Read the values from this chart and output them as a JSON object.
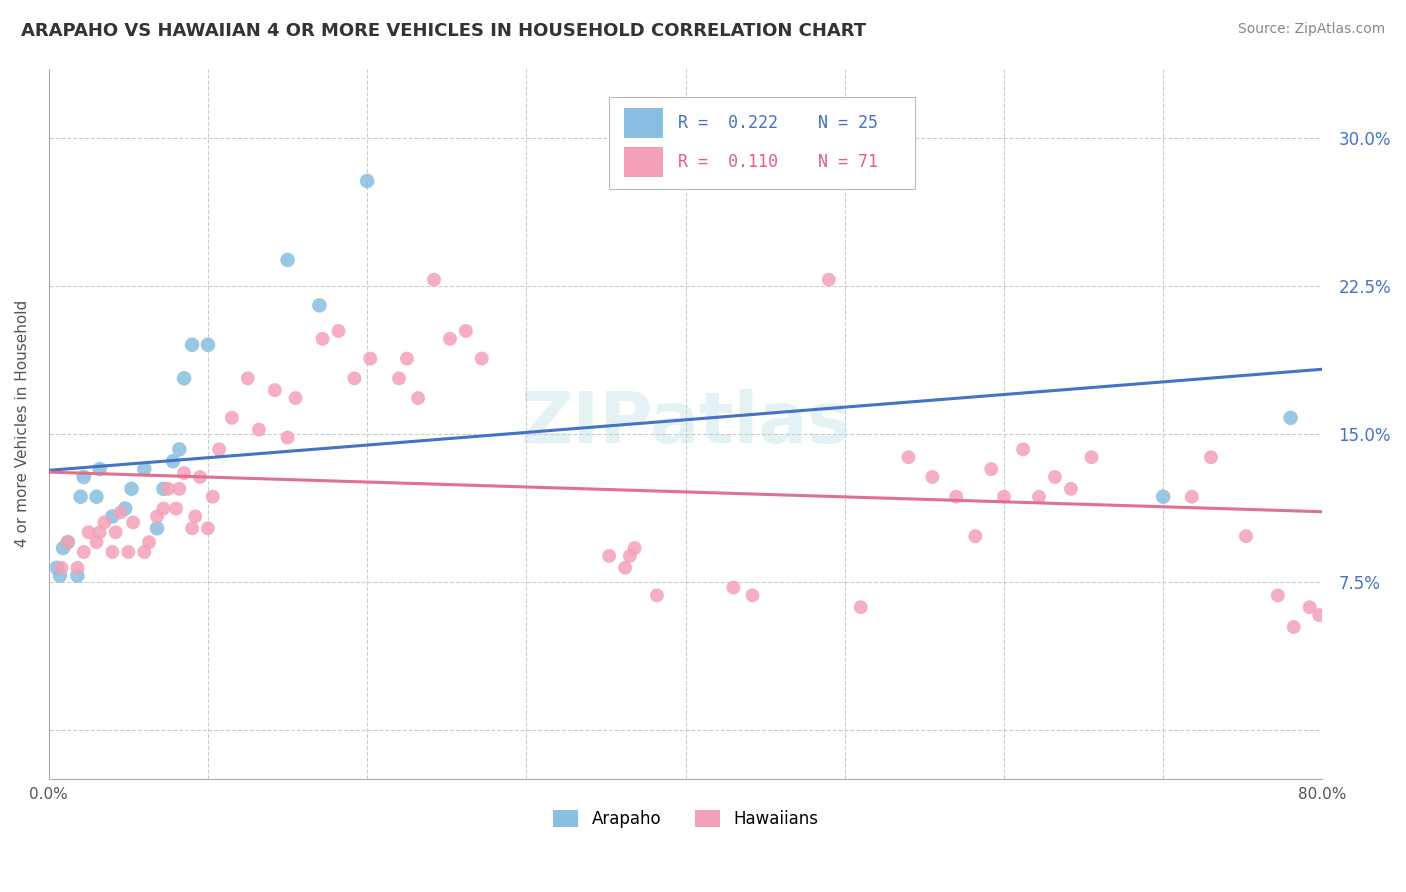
{
  "title": "ARAPAHO VS HAWAIIAN 4 OR MORE VEHICLES IN HOUSEHOLD CORRELATION CHART",
  "source": "Source: ZipAtlas.com",
  "ylabel": "4 or more Vehicles in Household",
  "xlim": [
    0.0,
    0.8
  ],
  "ylim": [
    -0.025,
    0.335
  ],
  "ytick_positions": [
    0.0,
    0.075,
    0.15,
    0.225,
    0.3
  ],
  "ytick_labels_right": [
    "",
    "7.5%",
    "15.0%",
    "22.5%",
    "30.0%"
  ],
  "color_arapaho": "#89bfe0",
  "color_hawaiian": "#f4a0b8",
  "color_arapaho_line": "#4472c4",
  "color_hawaiian_line": "#e07090",
  "watermark": "ZIPatlas",
  "arapaho_x": [
    0.005,
    0.007,
    0.009,
    0.012,
    0.018,
    0.02,
    0.022,
    0.03,
    0.032,
    0.04,
    0.048,
    0.052,
    0.06,
    0.068,
    0.072,
    0.078,
    0.082,
    0.085,
    0.09,
    0.1,
    0.15,
    0.17,
    0.2,
    0.7,
    0.78
  ],
  "arapaho_y": [
    0.082,
    0.078,
    0.092,
    0.095,
    0.078,
    0.118,
    0.128,
    0.118,
    0.132,
    0.108,
    0.112,
    0.122,
    0.132,
    0.102,
    0.122,
    0.136,
    0.142,
    0.178,
    0.195,
    0.195,
    0.238,
    0.215,
    0.278,
    0.118,
    0.158
  ],
  "hawaiian_x": [
    0.008,
    0.012,
    0.018,
    0.022,
    0.025,
    0.03,
    0.032,
    0.035,
    0.04,
    0.042,
    0.045,
    0.05,
    0.053,
    0.06,
    0.063,
    0.068,
    0.072,
    0.075,
    0.08,
    0.082,
    0.085,
    0.09,
    0.092,
    0.095,
    0.1,
    0.103,
    0.107,
    0.115,
    0.125,
    0.132,
    0.142,
    0.15,
    0.155,
    0.172,
    0.182,
    0.192,
    0.202,
    0.22,
    0.225,
    0.232,
    0.242,
    0.252,
    0.262,
    0.272,
    0.352,
    0.362,
    0.365,
    0.368,
    0.382,
    0.43,
    0.442,
    0.49,
    0.51,
    0.54,
    0.555,
    0.57,
    0.582,
    0.592,
    0.6,
    0.612,
    0.622,
    0.632,
    0.642,
    0.655,
    0.718,
    0.73,
    0.752,
    0.772,
    0.782,
    0.792,
    0.798
  ],
  "hawaiian_y": [
    0.082,
    0.095,
    0.082,
    0.09,
    0.1,
    0.095,
    0.1,
    0.105,
    0.09,
    0.1,
    0.11,
    0.09,
    0.105,
    0.09,
    0.095,
    0.108,
    0.112,
    0.122,
    0.112,
    0.122,
    0.13,
    0.102,
    0.108,
    0.128,
    0.102,
    0.118,
    0.142,
    0.158,
    0.178,
    0.152,
    0.172,
    0.148,
    0.168,
    0.198,
    0.202,
    0.178,
    0.188,
    0.178,
    0.188,
    0.168,
    0.228,
    0.198,
    0.202,
    0.188,
    0.088,
    0.082,
    0.088,
    0.092,
    0.068,
    0.072,
    0.068,
    0.228,
    0.062,
    0.138,
    0.128,
    0.118,
    0.098,
    0.132,
    0.118,
    0.142,
    0.118,
    0.128,
    0.122,
    0.138,
    0.118,
    0.138,
    0.098,
    0.068,
    0.052,
    0.062,
    0.058
  ]
}
